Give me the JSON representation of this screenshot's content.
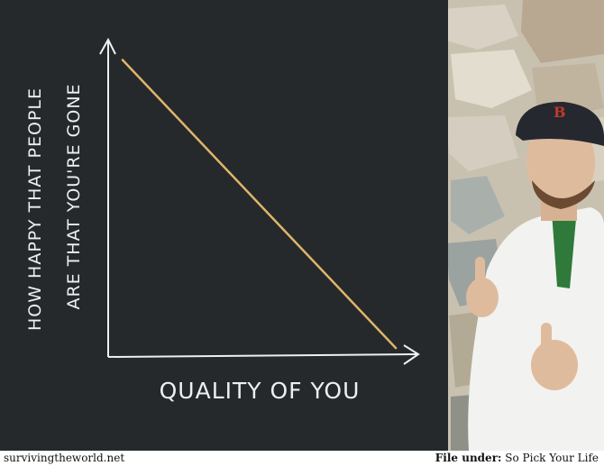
{
  "chart_data": {
    "type": "line",
    "xlabel": "Quality of You",
    "ylabel_lines": [
      "How Happy That People",
      "Are That You're Gone"
    ],
    "series": [
      {
        "x": [
          0.05,
          1.0
        ],
        "y": [
          1.0,
          0.03
        ]
      }
    ],
    "xlim": [
      0,
      1.05
    ],
    "ylim": [
      0,
      1.05
    ],
    "grid": false,
    "colors": {
      "line": "#e0b56a",
      "axes": "#eef0ef",
      "board": "#25292c"
    }
  },
  "footer": {
    "site": "survivingtheworld.net",
    "file_label": "File under:",
    "file_value": "So Pick Your Life"
  }
}
